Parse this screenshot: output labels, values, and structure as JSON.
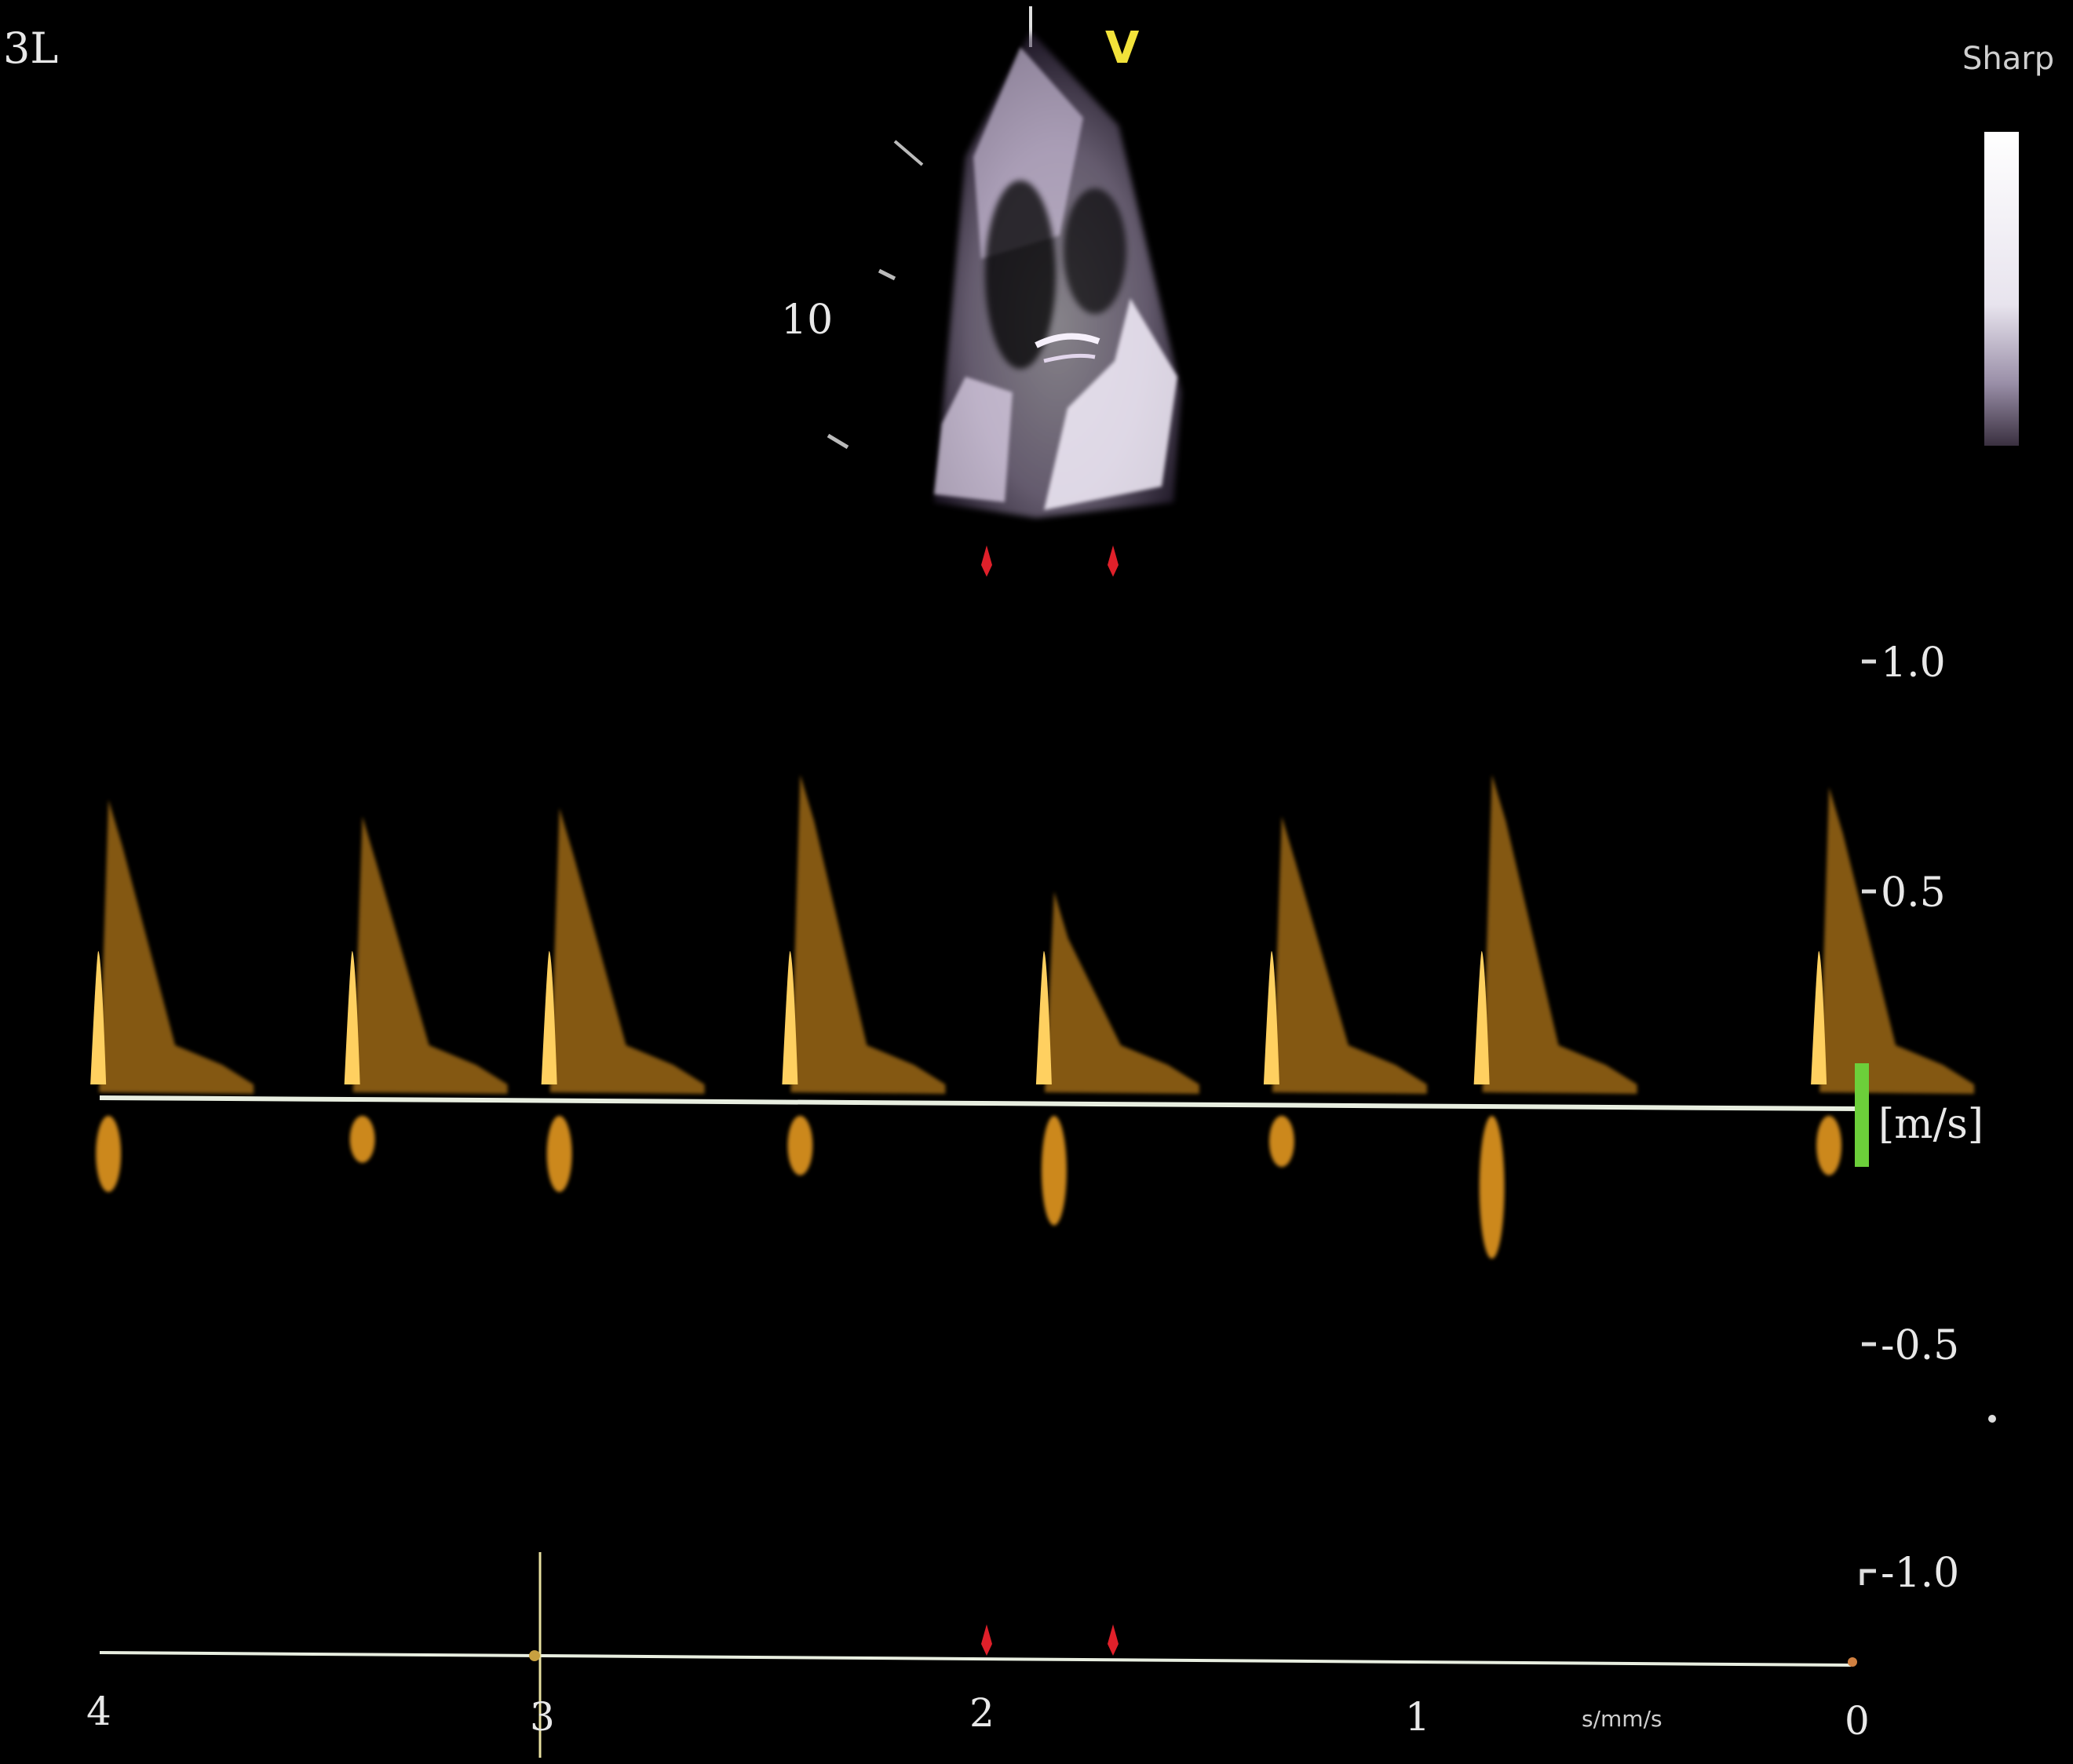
{
  "header": {
    "probe_label": "3L",
    "sector_marker": "V",
    "preset_label": "Sharp"
  },
  "image_2d": {
    "depth_label": "10"
  },
  "spectral": {
    "velocity_unit": "[m/s]",
    "velocity_ticks": [
      "1.0",
      "0.5",
      "-0.5",
      "-1.0"
    ]
  },
  "time_axis": {
    "labels": [
      "4",
      "3",
      "2",
      "1",
      "0"
    ],
    "unit_label": "s/mm/s"
  },
  "colors": {
    "background": "#000000",
    "doppler": "#f0a020",
    "doppler_bright": "#ffd060",
    "baseline": "#e8eee0",
    "gain_bar": "#6ccf3a",
    "ecg_marker": "#e0202a",
    "sector_marker": "#f2e23a"
  },
  "doppler_beats": [
    {
      "peak_velocity": 0.72,
      "reverse_velocity": -0.22,
      "time_s": 3.98
    },
    {
      "peak_velocity": 0.68,
      "reverse_velocity": -0.15,
      "time_s": 3.4
    },
    {
      "peak_velocity": 0.7,
      "reverse_velocity": -0.22,
      "time_s": 2.95
    },
    {
      "peak_velocity": 0.78,
      "reverse_velocity": -0.18,
      "time_s": 2.4
    },
    {
      "peak_velocity": 0.5,
      "reverse_velocity": -0.3,
      "time_s": 1.82
    },
    {
      "peak_velocity": 0.68,
      "reverse_velocity": -0.16,
      "time_s": 1.3
    },
    {
      "peak_velocity": 0.78,
      "reverse_velocity": -0.38,
      "time_s": 0.82
    },
    {
      "peak_velocity": 0.75,
      "reverse_velocity": -0.18,
      "time_s": 0.05
    }
  ]
}
